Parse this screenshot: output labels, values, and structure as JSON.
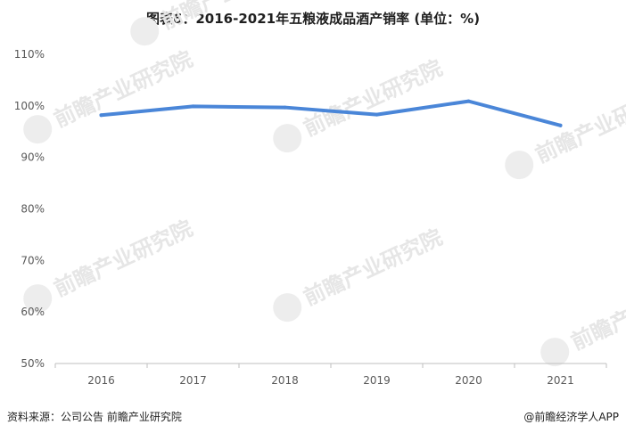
{
  "title": "图表6：2016-2021年五粮液成品酒产销率 (单位：%)",
  "footer": {
    "source": "资料来源：公司公告 前瞻产业研究院",
    "brand": "@前瞻经济学人APP"
  },
  "watermark": "前瞻产业研究院",
  "colors": {
    "line": "#4a86d8",
    "axis": "#bfbfbf",
    "text": "#595959"
  },
  "chart_data": {
    "type": "line",
    "categories": [
      "2016",
      "2017",
      "2018",
      "2019",
      "2020",
      "2021"
    ],
    "series": [
      {
        "values": [
          98.2,
          99.9,
          99.7,
          98.3,
          100.9,
          96.2
        ]
      }
    ],
    "yticks": [
      "50%",
      "60%",
      "70%",
      "80%",
      "90%",
      "100%",
      "110%"
    ],
    "ylim": [
      50,
      110
    ],
    "grid": false
  }
}
